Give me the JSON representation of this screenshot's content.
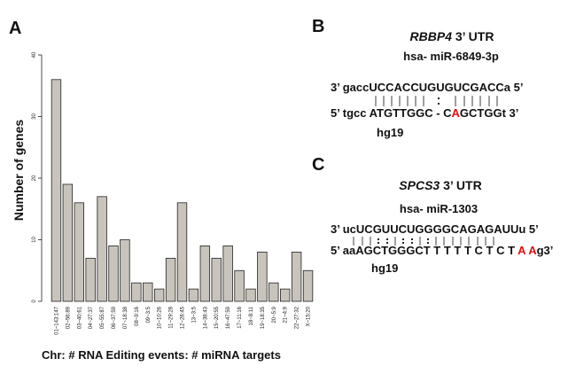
{
  "panels": {
    "a": "A",
    "b": "B",
    "c": "C"
  },
  "chart_data": {
    "type": "bar",
    "title": "",
    "xlabel": "Chr: # RNA Editing events: # miRNA targets",
    "ylabel": "Number of genes",
    "ylim": [
      0,
      40
    ],
    "yticks": [
      0,
      10,
      20,
      30,
      40
    ],
    "categories": [
      "01~143:147",
      "02~56:89",
      "03~40:61",
      "04~27:37",
      "05~55:87",
      "06~37:59",
      "07~18:38",
      "08~9:16",
      "09~3:5",
      "10~10:26",
      "11~29:28",
      "12~28:45",
      "13~3:5",
      "14~38:43",
      "15~20:55",
      "16~47:59",
      "17~11:16",
      "18~8:11",
      "19~18:35",
      "20~5:9",
      "21~4:9",
      "22~27:32",
      "X~15:20"
    ],
    "values": [
      36,
      19,
      16,
      7,
      17,
      9,
      10,
      3,
      3,
      2,
      7,
      16,
      2,
      9,
      7,
      9,
      5,
      2,
      8,
      3,
      2,
      8,
      5
    ],
    "bar_color": "#c8c4bc"
  },
  "panel_b": {
    "gene": "RBBP4",
    "gene_suffix": " 3’ UTR",
    "mirna": "hsa- miR-6849-3p",
    "top_prefix": "3’ gacc",
    "top_core": "UCCACCUGUGUCGACCa",
    "top_suffix": " 5’",
    "bottom_prefix": "5’ tgcc ",
    "bottom_core1": "ATGTTGGC - C",
    "bottom_edit": "A",
    "bottom_core2": "GCTGGt",
    "bottom_suffix": " 3’",
    "assembly": "hg19",
    "edit_color": "#e01010"
  },
  "panel_c": {
    "gene": "SPCS3",
    "gene_suffix": " 3’ UTR",
    "mirna": "hsa- miR-1303",
    "top_prefix": "3’ uc",
    "top_core": "UCGUUCUGGGGCAGAGAUUu",
    "top_suffix": " 5’",
    "bottom_prefix": "5’ aa",
    "bottom_core1": "AGCTGGGCT T T T T C T C T ",
    "bottom_edit": "A A",
    "bottom_core2": "g",
    "bottom_suffix": "3’",
    "assembly": "hg19",
    "edit_color": "#e01010"
  }
}
